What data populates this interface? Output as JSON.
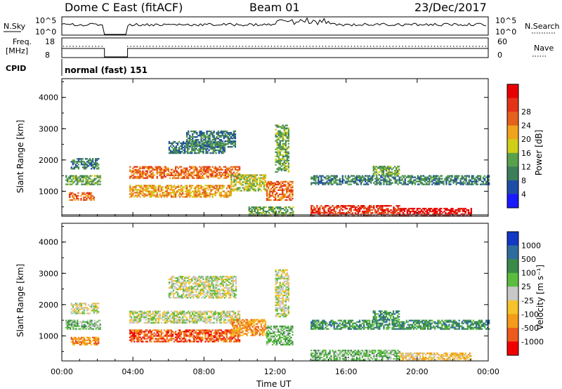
{
  "header": {
    "station": "Dome C East (fitACF)",
    "beam": "Beam 01",
    "date": "23/Dec/2017"
  },
  "aux_labels": {
    "nsky": "N.Sky",
    "nsearch": "N.Search",
    "freq_line1": "Freq.",
    "freq_line2": "[MHz]",
    "nave": "Nave",
    "cpid": "CPID",
    "cpid_value": "normal (fast) 151"
  },
  "aux_ticks": {
    "nsky_left": [
      "10^5",
      "10^0"
    ],
    "nsky_right": [
      "10^5",
      "10^0"
    ],
    "freq_left": [
      "18",
      "8"
    ],
    "nave_right": [
      "60",
      "0"
    ]
  },
  "colors": {
    "power": [
      "#1a1aff",
      "#1e4da6",
      "#3d7e5a",
      "#58a14c",
      "#cfce19",
      "#f0a31c",
      "#e5601c",
      "#e33217",
      "#e80000"
    ],
    "velocity": [
      "#f00000",
      "#ed5a1e",
      "#f39b1a",
      "#f5c32b",
      "#c8c8c8",
      "#5bbd3f",
      "#3b8a49",
      "#2f6c9e",
      "#1238c4"
    ]
  },
  "chart_data": [
    {
      "type": "heatmap",
      "name": "power",
      "xlabel": "Time UT",
      "ylabel": "Slant Range [km]",
      "x_ticks": [
        "00:00",
        "04:00",
        "08:00",
        "12:00",
        "16:00",
        "20:00",
        "00:00"
      ],
      "y_ticks": [
        "1000",
        "2000",
        "3000",
        "4000"
      ],
      "xlim_hours": [
        0,
        24
      ],
      "ylim_km": [
        200,
        4600
      ],
      "colorbar_label": "Power [dB]",
      "colorbar_ticks": [
        "4",
        "8",
        "12",
        "16",
        "20",
        "24",
        "28"
      ],
      "data_gaps_hours": [
        [
          2.4,
          3.7
        ]
      ],
      "regions": [
        {
          "t": [
            0.2,
            2.2
          ],
          "r": [
            1200,
            1500
          ],
          "level": 3
        },
        {
          "t": [
            0.4,
            1.8
          ],
          "r": [
            700,
            950
          ],
          "level": 6
        },
        {
          "t": [
            0.5,
            2.1
          ],
          "r": [
            1700,
            2050
          ],
          "level": 2
        },
        {
          "t": [
            3.8,
            10.0
          ],
          "r": [
            1400,
            1800
          ],
          "level": 6
        },
        {
          "t": [
            3.8,
            9.5
          ],
          "r": [
            800,
            1200
          ],
          "level": 5
        },
        {
          "t": [
            6.0,
            9.2
          ],
          "r": [
            2200,
            2600
          ],
          "level": 2
        },
        {
          "t": [
            7.0,
            9.8
          ],
          "r": [
            2400,
            2900
          ],
          "level": 2
        },
        {
          "t": [
            10.5,
            13.0
          ],
          "r": [
            200,
            500
          ],
          "level": 3
        },
        {
          "t": [
            11.5,
            13.0
          ],
          "r": [
            700,
            1300
          ],
          "level": 6
        },
        {
          "t": [
            12.0,
            12.8
          ],
          "r": [
            1600,
            3100
          ],
          "level": 3
        },
        {
          "t": [
            14.0,
            24.0
          ],
          "r": [
            1200,
            1500
          ],
          "level": 2
        },
        {
          "t": [
            14.0,
            19.0
          ],
          "r": [
            200,
            550
          ],
          "level": 7
        },
        {
          "t": [
            19.0,
            23.0
          ],
          "r": [
            200,
            450
          ],
          "level": 8
        },
        {
          "t": [
            17.5,
            19.0
          ],
          "r": [
            1500,
            1800
          ],
          "level": 3
        },
        {
          "t": [
            9.5,
            11.5
          ],
          "r": [
            1000,
            1500
          ],
          "level": 4
        }
      ]
    },
    {
      "type": "heatmap",
      "name": "velocity",
      "xlabel": "Time UT",
      "ylabel": "Slant Range [km]",
      "x_ticks": [
        "00:00",
        "04:00",
        "08:00",
        "12:00",
        "16:00",
        "20:00",
        "00:00"
      ],
      "y_ticks": [
        "1000",
        "2000",
        "3000",
        "4000"
      ],
      "xlim_hours": [
        0,
        24
      ],
      "ylim_km": [
        200,
        4600
      ],
      "colorbar_label": "Velocity [m s⁻¹]",
      "colorbar_ticks": [
        "1000",
        "500",
        "100",
        "25",
        "-25",
        "-100",
        "-500",
        "-1000"
      ],
      "data_gaps_hours": [
        [
          2.4,
          3.7
        ]
      ],
      "regions": [
        {
          "t": [
            0.2,
            2.2
          ],
          "r": [
            1200,
            1500
          ],
          "level": 5
        },
        {
          "t": [
            0.5,
            2.1
          ],
          "r": [
            700,
            950
          ],
          "level": 2
        },
        {
          "t": [
            0.5,
            2.1
          ],
          "r": [
            1700,
            2050
          ],
          "level": 4
        },
        {
          "t": [
            3.8,
            10.0
          ],
          "r": [
            1400,
            1800
          ],
          "level": 4
        },
        {
          "t": [
            3.8,
            10.0
          ],
          "r": [
            800,
            1200
          ],
          "level": 1
        },
        {
          "t": [
            6.0,
            9.8
          ],
          "r": [
            2200,
            2900
          ],
          "level": 4
        },
        {
          "t": [
            11.5,
            13.0
          ],
          "r": [
            700,
            1300
          ],
          "level": 5
        },
        {
          "t": [
            12.0,
            12.8
          ],
          "r": [
            1600,
            3100
          ],
          "level": 4
        },
        {
          "t": [
            14.0,
            24.0
          ],
          "r": [
            1200,
            1500
          ],
          "level": 6
        },
        {
          "t": [
            14.0,
            19.0
          ],
          "r": [
            200,
            550
          ],
          "level": 5
        },
        {
          "t": [
            19.0,
            23.0
          ],
          "r": [
            200,
            450
          ],
          "level": 3
        },
        {
          "t": [
            17.5,
            19.0
          ],
          "r": [
            1500,
            1800
          ],
          "level": 6
        },
        {
          "t": [
            9.5,
            11.5
          ],
          "r": [
            1000,
            1500
          ],
          "level": 2
        }
      ]
    }
  ]
}
